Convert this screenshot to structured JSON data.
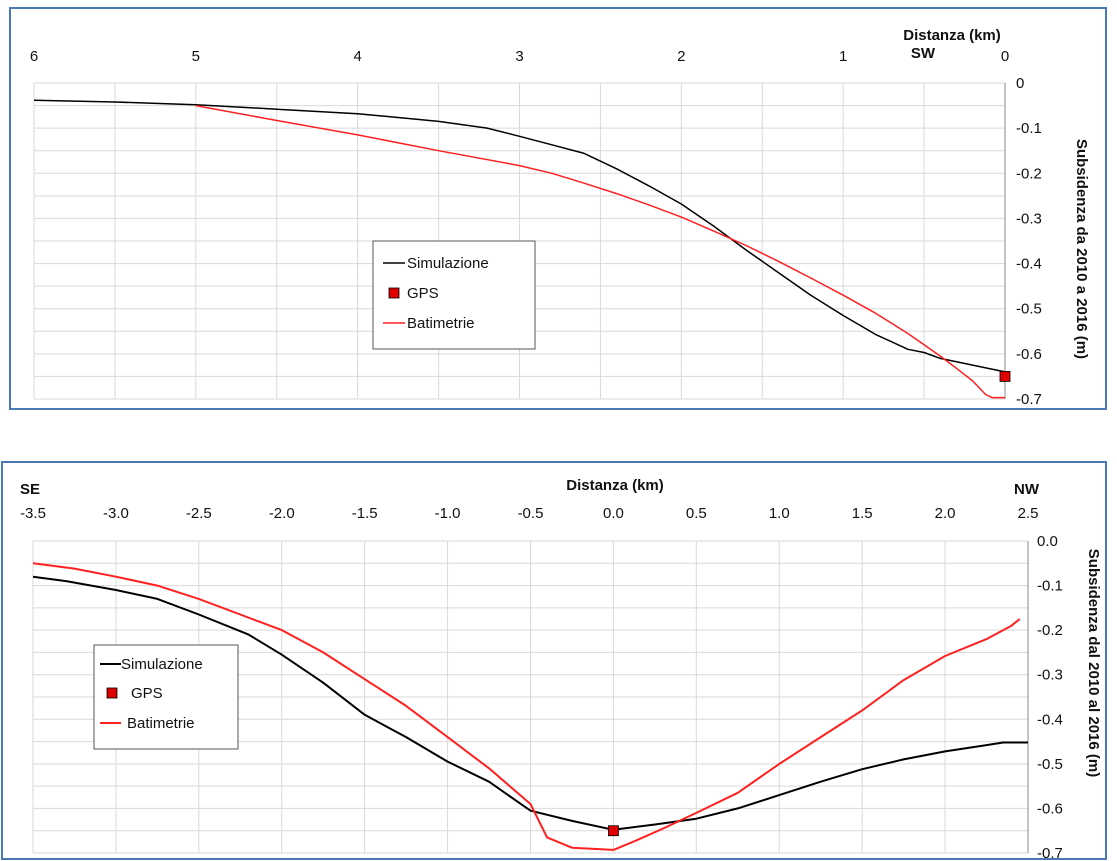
{
  "colors": {
    "simulation": "#000000",
    "gps": "#e00000",
    "bathymetry": "#ff2020",
    "grid": "#d9d9d9",
    "frame": "#4a7ab5"
  },
  "chart_data": [
    {
      "type": "line",
      "xlabel": "Distanza (km)",
      "direction_label": "SW",
      "ylabel": "Subsidenza da 2010 a 2016 (m)",
      "x_reversed": true,
      "xlim": [
        6,
        0
      ],
      "ylim": [
        -0.7,
        0
      ],
      "x_ticks": [
        6,
        5,
        4,
        3,
        2,
        1,
        0
      ],
      "x_tick_labels": [
        "6",
        "5",
        "4",
        "3",
        "2",
        "1",
        "0"
      ],
      "y_ticks": [
        0,
        -0.1,
        -0.2,
        -0.3,
        -0.4,
        -0.5,
        -0.6,
        -0.7
      ],
      "y_tick_labels": [
        "0",
        "-0.1",
        "-0.2",
        "-0.3",
        "-0.4",
        "-0.5",
        "-0.6",
        "-0.7"
      ],
      "grid": true,
      "legend_position": "center",
      "legend": [
        "Simulazione",
        "GPS",
        "Batimetrie"
      ],
      "series": [
        {
          "name": "Simulazione",
          "kind": "line",
          "x": [
            6.0,
            5.5,
            5.0,
            4.5,
            4.0,
            3.5,
            3.2,
            3.0,
            2.8,
            2.6,
            2.4,
            2.2,
            2.0,
            1.8,
            1.6,
            1.4,
            1.2,
            1.0,
            0.8,
            0.6,
            0.5,
            0.4,
            0.2,
            0.0
          ],
          "y": [
            -0.038,
            -0.042,
            -0.048,
            -0.058,
            -0.068,
            -0.085,
            -0.1,
            -0.118,
            -0.137,
            -0.156,
            -0.19,
            -0.228,
            -0.268,
            -0.317,
            -0.37,
            -0.42,
            -0.47,
            -0.515,
            -0.557,
            -0.59,
            -0.597,
            -0.61,
            -0.625,
            -0.64
          ]
        },
        {
          "name": "GPS",
          "kind": "marker",
          "x": [
            0.0
          ],
          "y": [
            -0.65
          ]
        },
        {
          "name": "Batimetrie",
          "kind": "line",
          "x": [
            5.0,
            4.5,
            4.0,
            3.5,
            3.0,
            2.8,
            2.6,
            2.4,
            2.2,
            2.0,
            1.8,
            1.6,
            1.4,
            1.2,
            1.0,
            0.8,
            0.6,
            0.5,
            0.4,
            0.3,
            0.2,
            0.12,
            0.08,
            0.0
          ],
          "y": [
            -0.05,
            -0.083,
            -0.115,
            -0.15,
            -0.183,
            -0.2,
            -0.222,
            -0.245,
            -0.27,
            -0.297,
            -0.328,
            -0.36,
            -0.395,
            -0.432,
            -0.47,
            -0.51,
            -0.555,
            -0.58,
            -0.605,
            -0.632,
            -0.66,
            -0.69,
            -0.697,
            -0.697
          ]
        }
      ]
    },
    {
      "type": "line",
      "xlabel": "Distanza (km)",
      "left_label": "SE",
      "right_label": "NW",
      "ylabel": "Subsidenza dal 2010 al 2016 (m)",
      "xlim": [
        -3.5,
        2.5
      ],
      "ylim": [
        -0.7,
        0.0
      ],
      "x_ticks": [
        -3.5,
        -3.0,
        -2.5,
        -2.0,
        -1.5,
        -1.0,
        -0.5,
        0.0,
        0.5,
        1.0,
        1.5,
        2.0,
        2.5
      ],
      "x_tick_labels": [
        "-3.5",
        "-3.0",
        "-2.5",
        "-2.0",
        "-1.5",
        "-1.0",
        "-0.5",
        "0.0",
        "0.5",
        "1.0",
        "1.5",
        "2.0",
        "2.5"
      ],
      "y_ticks": [
        0,
        -0.1,
        -0.2,
        -0.3,
        -0.4,
        -0.5,
        -0.6,
        -0.7
      ],
      "y_tick_labels": [
        "0.0",
        "-0.1",
        "-0.2",
        "-0.3",
        "-0.4",
        "-0.5",
        "-0.6",
        "-0.7"
      ],
      "grid": true,
      "legend_position": "left",
      "legend": [
        "Simulazione",
        "GPS",
        "Batimetrie"
      ],
      "series": [
        {
          "name": "Simulazione",
          "kind": "line",
          "x": [
            -3.5,
            -3.3,
            -3.0,
            -2.75,
            -2.5,
            -2.2,
            -2.0,
            -1.75,
            -1.5,
            -1.25,
            -1.0,
            -0.75,
            -0.5,
            -0.25,
            0.0,
            0.25,
            0.5,
            0.75,
            1.0,
            1.25,
            1.5,
            1.75,
            2.0,
            2.25,
            2.35,
            2.5
          ],
          "y": [
            -0.08,
            -0.09,
            -0.11,
            -0.13,
            -0.165,
            -0.21,
            -0.255,
            -0.318,
            -0.39,
            -0.44,
            -0.495,
            -0.54,
            -0.605,
            -0.628,
            -0.648,
            -0.636,
            -0.623,
            -0.6,
            -0.57,
            -0.54,
            -0.512,
            -0.49,
            -0.472,
            -0.458,
            -0.452,
            -0.452
          ]
        },
        {
          "name": "GPS",
          "kind": "marker",
          "x": [
            0.0
          ],
          "y": [
            -0.65
          ]
        },
        {
          "name": "Batimetrie",
          "kind": "line",
          "x": [
            -3.5,
            -3.25,
            -3.0,
            -2.75,
            -2.5,
            -2.25,
            -2.0,
            -1.75,
            -1.5,
            -1.25,
            -1.0,
            -0.75,
            -0.5,
            -0.4,
            -0.25,
            0.0,
            0.15,
            0.3,
            0.5,
            0.75,
            1.0,
            1.25,
            1.5,
            1.75,
            2.0,
            2.25,
            2.4,
            2.45
          ],
          "y": [
            -0.05,
            -0.062,
            -0.08,
            -0.1,
            -0.13,
            -0.165,
            -0.2,
            -0.25,
            -0.31,
            -0.37,
            -0.44,
            -0.51,
            -0.59,
            -0.665,
            -0.688,
            -0.693,
            -0.67,
            -0.645,
            -0.61,
            -0.565,
            -0.5,
            -0.44,
            -0.38,
            -0.312,
            -0.258,
            -0.22,
            -0.19,
            -0.175
          ]
        }
      ]
    }
  ]
}
